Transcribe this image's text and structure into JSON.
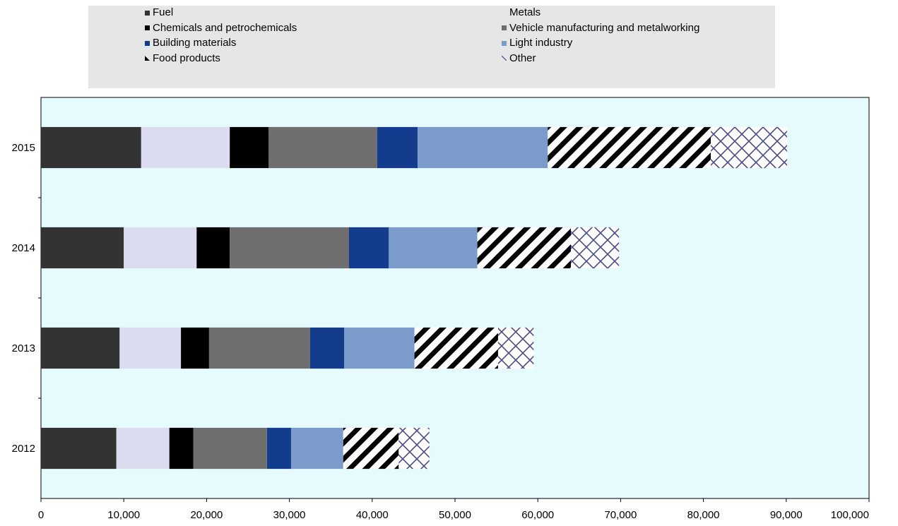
{
  "chart_data": {
    "type": "bar",
    "orientation": "horizontal",
    "stacked": true,
    "title": "",
    "xlabel": "",
    "ylabel": "",
    "xlim": [
      0,
      100000
    ],
    "x_ticks": [
      "0",
      "10,000",
      "20,000",
      "30,000",
      "40,000",
      "50,000",
      "60,000",
      "70,000",
      "80,000",
      "90,000",
      "100,000"
    ],
    "categories": [
      "2015",
      "2014",
      "2013",
      "2012"
    ],
    "legend_position": "top",
    "grid": false,
    "series": [
      {
        "name": "Fuel",
        "color": "#333333",
        "pattern": "solid",
        "values": [
          12100,
          10000,
          9500,
          9100
        ]
      },
      {
        "name": "Metals",
        "color": "#dcdcf0",
        "pattern": "solid",
        "values": [
          10700,
          8800,
          7400,
          6400
        ]
      },
      {
        "name": "Chemicals and petrochemicals",
        "color": "#000000",
        "pattern": "solid",
        "values": [
          4700,
          4000,
          3400,
          2900
        ]
      },
      {
        "name": "Vehicle manufacturing and metalworking",
        "color": "#6e6e6e",
        "pattern": "solid",
        "values": [
          13100,
          14400,
          12200,
          8900
        ]
      },
      {
        "name": "Building materials",
        "color": "#143c8c",
        "pattern": "solid",
        "values": [
          4900,
          4800,
          4100,
          2900
        ]
      },
      {
        "name": "Light industry",
        "color": "#7b9cca",
        "pattern": "solid",
        "values": [
          15700,
          10700,
          8500,
          6300
        ]
      },
      {
        "name": "Food products",
        "color": "#000000",
        "pattern": "diagonal",
        "values": [
          19700,
          11300,
          10100,
          6700
        ]
      },
      {
        "name": "Other",
        "color": "#4a4a8c",
        "pattern": "cross",
        "values": [
          9200,
          5800,
          4300,
          3700
        ]
      }
    ]
  }
}
